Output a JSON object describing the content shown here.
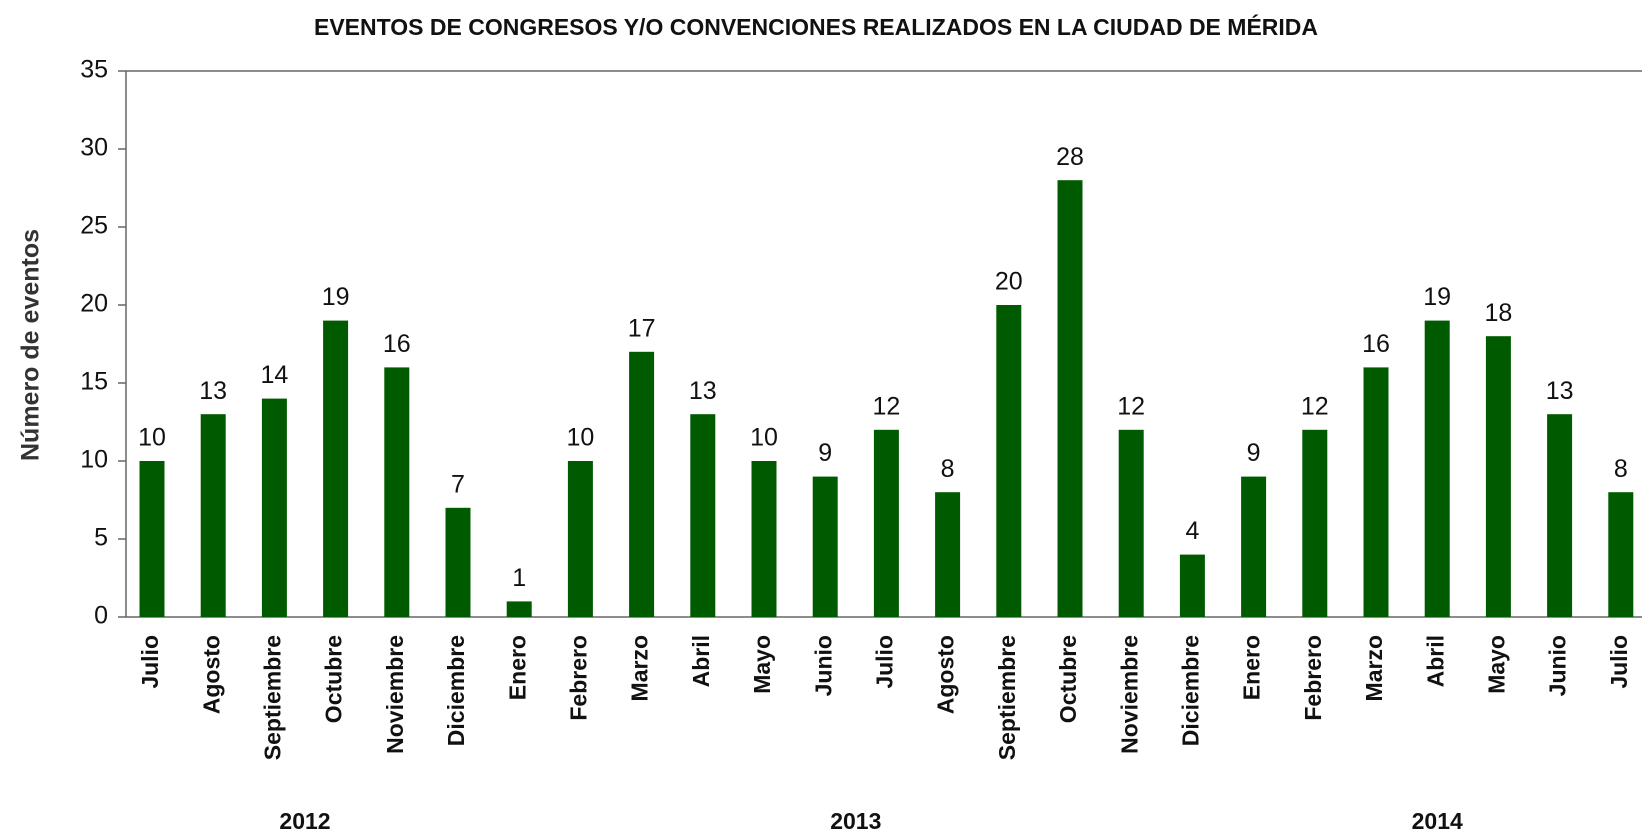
{
  "chart_data": {
    "type": "bar",
    "title": "EVENTOS DE CONGRESOS Y/O CONVENCIONES REALIZADOS EN LA CIUDAD DE MÉRIDA",
    "y_label": "Número de eventos",
    "categories": [
      "Julio",
      "Agosto",
      "Septiembre",
      "Octubre",
      "Noviembre",
      "Diciembre",
      "Enero",
      "Febrero",
      "Marzo",
      "Abril",
      "Mayo",
      "Junio",
      "Julio",
      "Agosto",
      "Septiembre",
      "Octubre",
      "Noviembre",
      "Diciembre",
      "Enero",
      "Febrero",
      "Marzo",
      "Abril",
      "Mayo",
      "Junio",
      "Julio"
    ],
    "values": [
      10,
      13,
      14,
      19,
      16,
      7,
      1,
      10,
      17,
      13,
      10,
      9,
      12,
      8,
      20,
      28,
      12,
      4,
      9,
      12,
      16,
      19,
      18,
      13,
      8
    ],
    "x_groups": [
      {
        "label": "2012",
        "count": 6
      },
      {
        "label": "2013",
        "count": 12
      },
      {
        "label": "2014",
        "count": 7
      }
    ],
    "color": "#005a00",
    "ylim": [
      0,
      35
    ],
    "yticks": [
      0,
      5,
      10,
      15,
      20,
      25,
      30,
      35
    ],
    "grid": false
  }
}
